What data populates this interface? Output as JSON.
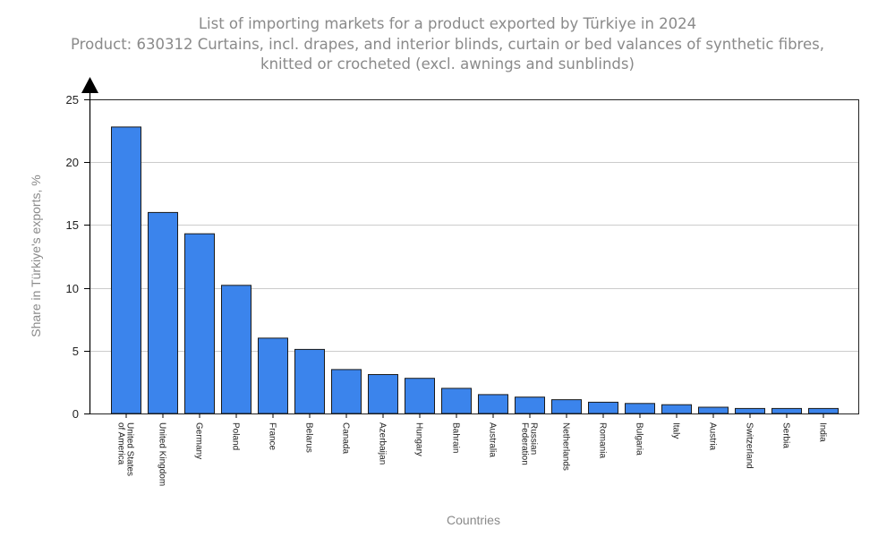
{
  "chart_data": {
    "type": "bar",
    "title_lines": [
      "List of importing markets for a product exported by Türkiye in 2024",
      "Product: 630312 Curtains, incl. drapes, and interior blinds, curtain or bed valances of synthetic fibres,",
      "knitted or crocheted (excl. awnings and sunblinds)"
    ],
    "xlabel": "Countries",
    "ylabel": "Share in Türkiye's exports, %",
    "ylim": [
      0,
      25
    ],
    "yticks": [
      0,
      5,
      10,
      15,
      20,
      25
    ],
    "grid": true,
    "legend": "none",
    "categories": [
      [
        "United States",
        "of America"
      ],
      [
        "United Kingdom"
      ],
      [
        "Germany"
      ],
      [
        "Poland"
      ],
      [
        "France"
      ],
      [
        "Belarus"
      ],
      [
        "Canada"
      ],
      [
        "Azerbaijan"
      ],
      [
        "Hungary"
      ],
      [
        "Bahrain"
      ],
      [
        "Australia"
      ],
      [
        "Russian",
        "Federation"
      ],
      [
        "Netherlands"
      ],
      [
        "Romania"
      ],
      [
        "Bulgaria"
      ],
      [
        "Italy"
      ],
      [
        "Austria"
      ],
      [
        "Switzerland"
      ],
      [
        "Serbia"
      ],
      [
        "India"
      ]
    ],
    "values": [
      22.8,
      16.0,
      14.3,
      10.2,
      6.0,
      5.1,
      3.5,
      3.1,
      2.8,
      2.0,
      1.5,
      1.3,
      1.1,
      0.9,
      0.8,
      0.7,
      0.5,
      0.4,
      0.4,
      0.4
    ],
    "bar_color": "#3b84ec",
    "bar_edge_color": "#1a1a1a",
    "grid_color": "#cccccc"
  }
}
